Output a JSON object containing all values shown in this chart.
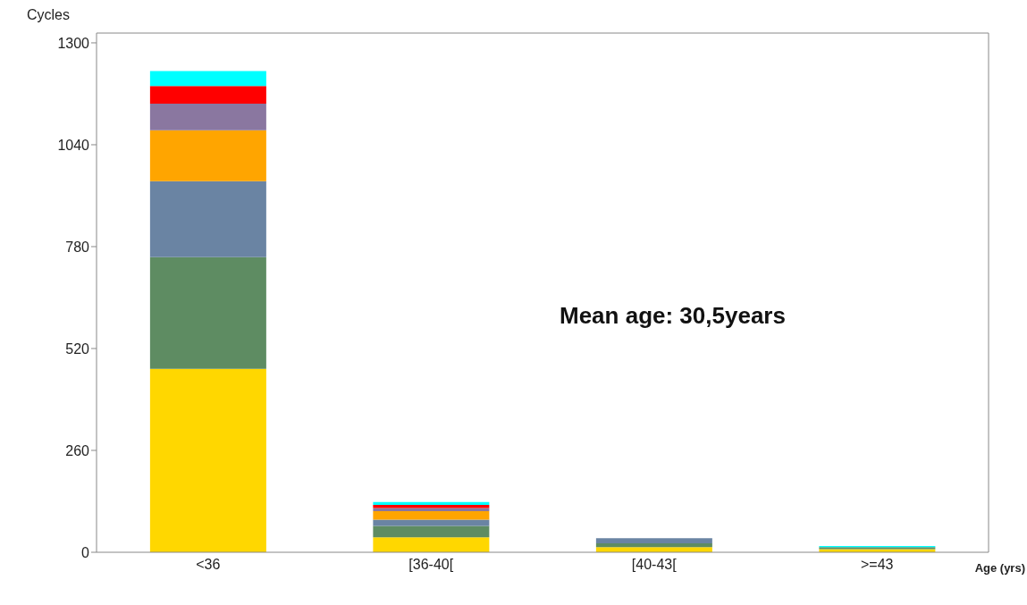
{
  "chart_data": {
    "type": "bar",
    "stacked": true,
    "xlabel": "Age (yrs)",
    "ylabel": "Cycles",
    "annotations": [
      "Mean age: 30,5years"
    ],
    "categories": [
      "<36",
      "[36-40[",
      "[40-43[",
      ">=43"
    ],
    "series": [
      {
        "color": "#ffd700",
        "values": [
          468,
          38,
          13,
          8
        ]
      },
      {
        "color": "#5e8c62",
        "values": [
          285,
          29,
          10,
          5
        ]
      },
      {
        "color": "#6a84a3",
        "values": [
          194,
          16,
          13,
          0
        ]
      },
      {
        "color": "#ffa500",
        "values": [
          130,
          22,
          0,
          0
        ]
      },
      {
        "color": "#8a77a0",
        "values": [
          68,
          8,
          0,
          0
        ]
      },
      {
        "color": "#ff0000",
        "values": [
          45,
          8,
          0,
          0
        ]
      },
      {
        "color": "#00ffff",
        "values": [
          38,
          7,
          0,
          3
        ]
      }
    ],
    "ylim": [
      0,
      1325
    ],
    "yticks": [
      0,
      260,
      520,
      780,
      1040,
      1300
    ],
    "grid": false
  }
}
